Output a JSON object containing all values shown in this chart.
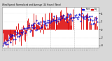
{
  "title": "Wind Speed: Normalized and Average (24 Hours) (New)",
  "bg_color": "#d8d8d8",
  "plot_bg": "#ffffff",
  "bar_color": "#dd0000",
  "dot_color": "#0000cc",
  "ylim": [
    -4.5,
    5.5
  ],
  "ytick_vals": [
    -4,
    -2,
    0,
    2,
    4
  ],
  "ytick_labels": [
    "-4",
    "-2",
    "0",
    "2",
    "4"
  ],
  "n_points": 144,
  "legend_label1": "Norm",
  "legend_label2": "Avg",
  "legend_color1": "#0000cc",
  "legend_color2": "#dd0000",
  "grid_color": "#bbbbbb",
  "vline_color": "#aaaaaa",
  "vline_positions": [
    36,
    72,
    108
  ]
}
